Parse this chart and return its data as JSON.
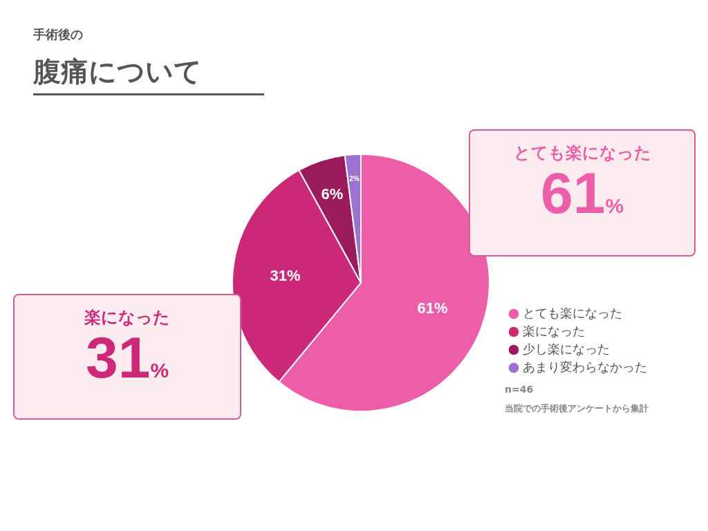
{
  "chart_data": {
    "type": "pie",
    "title": "腹痛について",
    "subtitle": "手術後の",
    "categories": [
      "とても楽になった",
      "楽になった",
      "少し楽になった",
      "あまり変わらなかった"
    ],
    "values": [
      61,
      31,
      6,
      2
    ],
    "colors": [
      "#ec5fa8",
      "#cc2a78",
      "#9b1a5c",
      "#9b72d0"
    ],
    "value_labels": [
      "61%",
      "31%",
      "6%",
      "2%"
    ],
    "legend": "right",
    "annotations": [
      "とても楽になった",
      "61%",
      "楽になった",
      "31%",
      "n=46",
      "当院での手術後アンケートから集計"
    ]
  }
}
